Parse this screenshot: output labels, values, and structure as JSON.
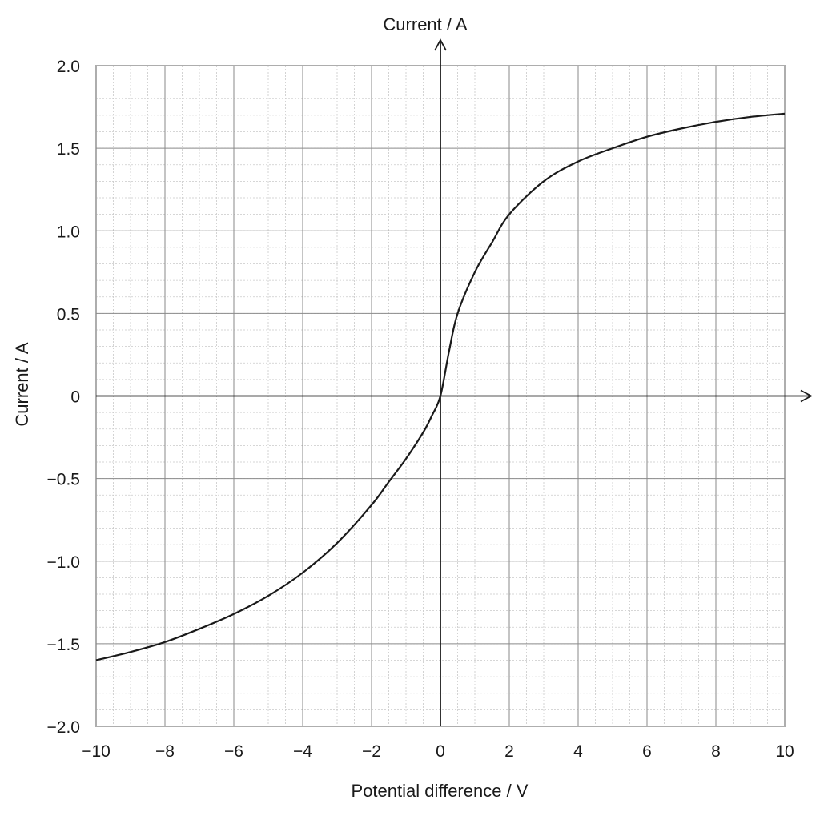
{
  "chart_data": {
    "type": "line",
    "title": "",
    "xlabel": "Potential difference / V",
    "ylabel": "Current / A",
    "y_axis_title": "Current / A",
    "xlim": [
      -10,
      10
    ],
    "ylim": [
      -2.0,
      2.0
    ],
    "x_ticks": [
      "−10",
      "−8",
      "−6",
      "−4",
      "−2",
      "0",
      "2",
      "4",
      "6",
      "8",
      "10"
    ],
    "y_ticks": [
      "2.0",
      "1.5",
      "1.0",
      "0.5",
      "0",
      "−0.5",
      "−1.0",
      "−1.5",
      "−2.0"
    ],
    "grid": true,
    "minor_grid": true,
    "series": [
      {
        "x": [
          -10,
          -9,
          -8,
          -7,
          -6,
          -5,
          -4,
          -3,
          -2,
          -1.5,
          -1,
          -0.5,
          -0.25,
          0,
          0.25,
          0.5,
          1,
          1.5,
          2,
          3,
          4,
          5,
          6,
          7,
          8,
          9,
          10
        ],
        "y": [
          -1.6,
          -1.55,
          -1.49,
          -1.41,
          -1.32,
          -1.21,
          -1.07,
          -0.89,
          -0.66,
          -0.52,
          -0.38,
          -0.22,
          -0.12,
          0,
          0.27,
          0.5,
          0.75,
          0.93,
          1.1,
          1.3,
          1.42,
          1.5,
          1.57,
          1.62,
          1.66,
          1.69,
          1.71
        ],
        "color": "#1a1a1a"
      }
    ]
  },
  "colors": {
    "major_grid": "#8a8a8a",
    "minor_grid": "#c9c9c9",
    "axis": "#1a1a1a",
    "curve": "#1a1a1a"
  }
}
